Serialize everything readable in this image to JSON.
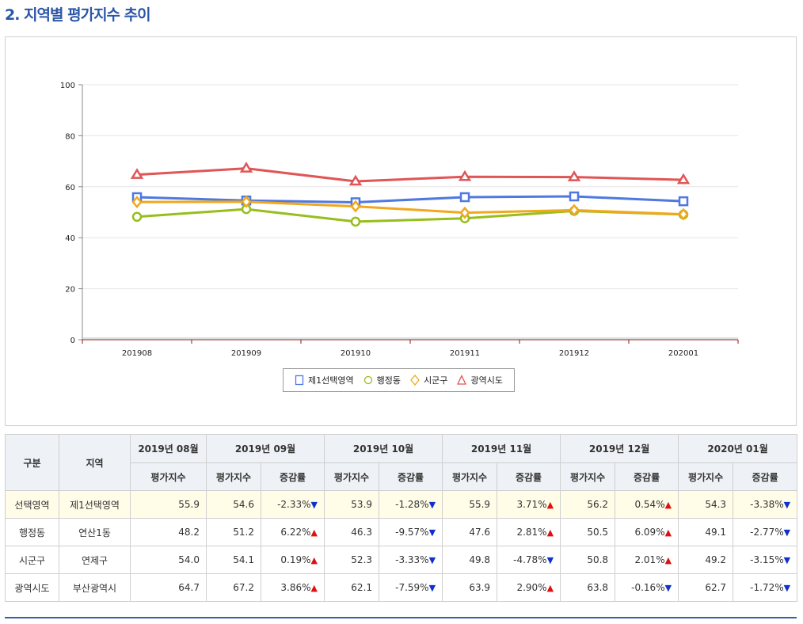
{
  "section_title": "2. 지역별 평가지수 추이",
  "chart_data": {
    "type": "line",
    "categories": [
      "201908",
      "201909",
      "201910",
      "201911",
      "201912",
      "202001"
    ],
    "ylim": [
      0,
      100
    ],
    "yticks": [
      0,
      20,
      40,
      60,
      80,
      100
    ],
    "grid": true,
    "legend_position": "bottom",
    "series": [
      {
        "name": "제1선택영역",
        "values": [
          55.9,
          54.6,
          53.9,
          55.9,
          56.2,
          54.3
        ],
        "color": "#4f78e0",
        "marker": "square"
      },
      {
        "name": "행정동",
        "values": [
          48.2,
          51.2,
          46.3,
          47.6,
          50.5,
          49.1
        ],
        "color": "#97be1c",
        "marker": "circle"
      },
      {
        "name": "시군구",
        "values": [
          54.0,
          54.1,
          52.3,
          49.8,
          50.8,
          49.2
        ],
        "color": "#f0a81c",
        "marker": "diamond"
      },
      {
        "name": "광역시도",
        "values": [
          64.7,
          67.2,
          62.1,
          63.9,
          63.8,
          62.7
        ],
        "color": "#e05555",
        "marker": "triangle"
      }
    ]
  },
  "table": {
    "header_gubun": "구분",
    "header_region": "지역",
    "months": [
      "2019년 08월",
      "2019년 09월",
      "2019년 10월",
      "2019년 11월",
      "2019년 12월",
      "2020년 01월"
    ],
    "sub_index": "평가지수",
    "sub_change": "증감률",
    "rows": [
      {
        "gubun": "선택영역",
        "region": "제1선택영역",
        "cells": [
          {
            "value": "55.9"
          },
          {
            "value": "54.6",
            "change": "-2.33%",
            "dir": "down"
          },
          {
            "value": "53.9",
            "change": "-1.28%",
            "dir": "down"
          },
          {
            "value": "55.9",
            "change": "3.71%",
            "dir": "up"
          },
          {
            "value": "56.2",
            "change": "0.54%",
            "dir": "up"
          },
          {
            "value": "54.3",
            "change": "-3.38%",
            "dir": "down"
          }
        ]
      },
      {
        "gubun": "행정동",
        "region": "연산1동",
        "cells": [
          {
            "value": "48.2"
          },
          {
            "value": "51.2",
            "change": "6.22%",
            "dir": "up"
          },
          {
            "value": "46.3",
            "change": "-9.57%",
            "dir": "down"
          },
          {
            "value": "47.6",
            "change": "2.81%",
            "dir": "up"
          },
          {
            "value": "50.5",
            "change": "6.09%",
            "dir": "up"
          },
          {
            "value": "49.1",
            "change": "-2.77%",
            "dir": "down"
          }
        ]
      },
      {
        "gubun": "시군구",
        "region": "연제구",
        "cells": [
          {
            "value": "54.0"
          },
          {
            "value": "54.1",
            "change": "0.19%",
            "dir": "up"
          },
          {
            "value": "52.3",
            "change": "-3.33%",
            "dir": "down"
          },
          {
            "value": "49.8",
            "change": "-4.78%",
            "dir": "down"
          },
          {
            "value": "50.8",
            "change": "2.01%",
            "dir": "up"
          },
          {
            "value": "49.2",
            "change": "-3.15%",
            "dir": "down"
          }
        ]
      },
      {
        "gubun": "광역시도",
        "region": "부산광역시",
        "cells": [
          {
            "value": "64.7"
          },
          {
            "value": "67.2",
            "change": "3.86%",
            "dir": "up"
          },
          {
            "value": "62.1",
            "change": "-7.59%",
            "dir": "down"
          },
          {
            "value": "63.9",
            "change": "2.90%",
            "dir": "up"
          },
          {
            "value": "63.8",
            "change": "-0.16%",
            "dir": "down"
          },
          {
            "value": "62.7",
            "change": "-1.72%",
            "dir": "down"
          }
        ]
      }
    ]
  }
}
